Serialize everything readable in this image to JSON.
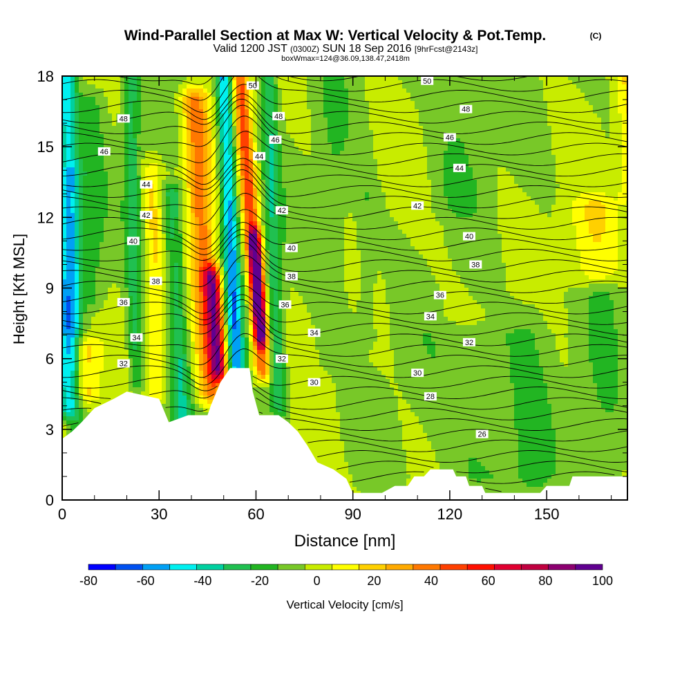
{
  "header": {
    "title": "Wind-Parallel Section at Max W: Vertical Velocity & Pot.Temp.",
    "copyright": "(C)",
    "valid_prefix": "Valid 1200 JST",
    "utc": "(0300Z)",
    "valid_date": "SUN 18 Sep 2016",
    "forecast": "[9hrFcst@2143z]",
    "box_info": "boxWmax=124@36.09,138.47,2418m"
  },
  "colors": {
    "background": "#ffffff",
    "frame": "#000000",
    "terrain": "#ffffff",
    "contour": "#000000"
  },
  "chart_data": {
    "type": "heatmap",
    "title": "Wind-Parallel Section at Max W: Vertical Velocity & Pot.Temp.",
    "xlabel": "Distance [nm]",
    "ylabel": "Height [Kft MSL]",
    "xlim": [
      0,
      175
    ],
    "ylim": [
      0,
      18
    ],
    "x_ticks": [
      0,
      30,
      60,
      90,
      120,
      150
    ],
    "y_ticks": [
      0,
      3,
      6,
      9,
      12,
      15,
      18
    ],
    "colorbar": {
      "label": "Vertical Velocity [cm/s]",
      "levels": [
        -80,
        -70,
        -60,
        -50,
        -40,
        -30,
        -20,
        -10,
        0,
        10,
        20,
        30,
        40,
        50,
        60,
        70,
        80,
        90,
        100
      ],
      "tick_labels": [
        "-80",
        "-60",
        "-40",
        "-20",
        "0",
        "20",
        "40",
        "60",
        "80",
        "100"
      ],
      "tick_values": [
        -80,
        -60,
        -40,
        -20,
        0,
        20,
        40,
        60,
        80,
        100
      ],
      "colors": [
        "#0000ff",
        "#0050f0",
        "#00a0f5",
        "#00f0f0",
        "#00d0a0",
        "#20c050",
        "#22b522",
        "#78c828",
        "#c8ec00",
        "#ffff00",
        "#ffd000",
        "#ffaa00",
        "#ff7800",
        "#ff4000",
        "#ff1000",
        "#e00030",
        "#c00040",
        "#8c0070",
        "#600090"
      ]
    },
    "terrain_profile": [
      [
        0,
        2.6
      ],
      [
        3,
        2.9
      ],
      [
        6,
        3.3
      ],
      [
        10,
        3.9
      ],
      [
        16,
        4.3
      ],
      [
        20,
        4.6
      ],
      [
        30,
        4.3
      ],
      [
        33,
        3.3
      ],
      [
        39,
        3.6
      ],
      [
        45,
        3.6
      ],
      [
        46,
        4.0
      ],
      [
        49,
        5.0
      ],
      [
        52,
        5.6
      ],
      [
        58,
        5.6
      ],
      [
        59,
        4.6
      ],
      [
        61,
        3.6
      ],
      [
        67,
        3.6
      ],
      [
        70,
        3.3
      ],
      [
        73,
        2.9
      ],
      [
        76,
        2.3
      ],
      [
        79,
        1.6
      ],
      [
        84,
        1.3
      ],
      [
        88,
        0.9
      ],
      [
        90,
        0.3
      ],
      [
        99,
        0.3
      ],
      [
        103,
        0.6
      ],
      [
        107,
        0.6
      ],
      [
        109,
        1.0
      ],
      [
        112,
        1.0
      ],
      [
        114,
        1.3
      ],
      [
        121,
        1.3
      ],
      [
        122,
        1.0
      ],
      [
        125,
        1.0
      ],
      [
        126,
        0.6
      ],
      [
        130,
        0.6
      ],
      [
        131,
        0.3
      ],
      [
        148,
        0.3
      ],
      [
        150,
        0.6
      ],
      [
        157,
        0.6
      ],
      [
        158,
        1.0
      ],
      [
        175,
        1.0
      ]
    ],
    "w_features": [
      {
        "x": 1.5,
        "y_base": 4,
        "y_top": 18,
        "lean": 0,
        "half_width": 3,
        "w": -45
      },
      {
        "x": 4,
        "y_base": 3,
        "y_top": 14,
        "lean": 0,
        "half_width": 2.5,
        "w": -20
      },
      {
        "x": 9,
        "y_base": 8.5,
        "y_top": 17,
        "lean": 0,
        "half_width": 4,
        "w": -14
      },
      {
        "x": 7,
        "y_base": 4.5,
        "y_top": 6.5,
        "lean": 0,
        "half_width": 5,
        "w": 25
      },
      {
        "x": 23,
        "y_base": 5,
        "y_top": 18,
        "lean": -2,
        "half_width": 2.5,
        "w": -25
      },
      {
        "x": 29,
        "y_base": 4.5,
        "y_top": 14,
        "lean": -1,
        "half_width": 2.5,
        "w": 18
      },
      {
        "x": 37,
        "y_base": 3.5,
        "y_top": 13,
        "lean": -3,
        "half_width": 3,
        "w": -28
      },
      {
        "x": 46,
        "y_base": 4.5,
        "y_top": 17,
        "lean": -5,
        "half_width": 4,
        "w": 45
      },
      {
        "x": 48.5,
        "y_base": 5.5,
        "y_top": 9.5,
        "lean": -2,
        "half_width": 2.5,
        "w": 75
      },
      {
        "x": 54,
        "y_base": 5.6,
        "y_top": 18,
        "lean": -4,
        "half_width": 2.5,
        "w": -55
      },
      {
        "x": 62,
        "y_base": 5.5,
        "y_top": 18,
        "lean": -7,
        "half_width": 2.5,
        "w": 55
      },
      {
        "x": 61.5,
        "y_base": 7,
        "y_top": 11,
        "lean": -2,
        "half_width": 1.8,
        "w": 85
      },
      {
        "x": 67,
        "y_base": 4,
        "y_top": 18,
        "lean": -3,
        "half_width": 2.5,
        "w": -28
      },
      {
        "x": 84,
        "y_base": 6,
        "y_top": 18,
        "lean": 0,
        "half_width": 5,
        "w": -8
      },
      {
        "x": 94,
        "y_base": 7,
        "y_top": 13,
        "lean": 0,
        "half_width": 3,
        "w": -9
      },
      {
        "x": 123,
        "y_base": 12.5,
        "y_top": 18,
        "lean": 0,
        "half_width": 8,
        "w": -9
      },
      {
        "x": 130,
        "y_base": 1,
        "y_top": 7,
        "lean": 0,
        "half_width": 18,
        "w": -9
      },
      {
        "x": 145,
        "y_base": 0,
        "y_top": 8,
        "lean": 0,
        "half_width": 6,
        "w": -8
      },
      {
        "x": 168,
        "y_base": 1,
        "y_top": 9,
        "lean": 0,
        "half_width": 6,
        "w": -9
      },
      {
        "x": 165,
        "y_base": 9.5,
        "y_top": 12.5,
        "lean": 0,
        "half_width": 8,
        "w": 18
      },
      {
        "x": 175,
        "y_base": 13,
        "y_top": 18,
        "lean": 0,
        "half_width": 3,
        "w": 18
      }
    ],
    "theta_levels": [
      26,
      28,
      30,
      32,
      34,
      36,
      38,
      40,
      42,
      44,
      46,
      48,
      50
    ],
    "theta_height_east": {
      "26": 2.8,
      "28": 4.5,
      "30": 5.2,
      "32": 6.7,
      "34": 7.8,
      "36": 8.7,
      "38": 10.0,
      "40": 11.2,
      "42": 12.6,
      "44": 14.0,
      "46": 15.3,
      "48": 16.6,
      "50": 17.8
    },
    "contour_labels": [
      {
        "text": "50",
        "x": 59,
        "y": 17.6
      },
      {
        "text": "50",
        "x": 113,
        "y": 17.8
      },
      {
        "text": "48",
        "x": 19,
        "y": 16.2
      },
      {
        "text": "48",
        "x": 67,
        "y": 16.3
      },
      {
        "text": "48",
        "x": 125,
        "y": 16.6
      },
      {
        "text": "46",
        "x": 13,
        "y": 14.8
      },
      {
        "text": "46",
        "x": 66,
        "y": 15.3
      },
      {
        "text": "46",
        "x": 120,
        "y": 15.4
      },
      {
        "text": "44",
        "x": 26,
        "y": 13.4
      },
      {
        "text": "44",
        "x": 61,
        "y": 14.6
      },
      {
        "text": "44",
        "x": 123,
        "y": 14.1
      },
      {
        "text": "42",
        "x": 26,
        "y": 12.1
      },
      {
        "text": "42",
        "x": 68,
        "y": 12.3
      },
      {
        "text": "42",
        "x": 110,
        "y": 12.5
      },
      {
        "text": "40",
        "x": 22,
        "y": 11.0
      },
      {
        "text": "40",
        "x": 71,
        "y": 10.7
      },
      {
        "text": "40",
        "x": 126,
        "y": 11.2
      },
      {
        "text": "38",
        "x": 29,
        "y": 9.3
      },
      {
        "text": "38",
        "x": 71,
        "y": 9.5
      },
      {
        "text": "38",
        "x": 128,
        "y": 10.0
      },
      {
        "text": "36",
        "x": 19,
        "y": 8.4
      },
      {
        "text": "36",
        "x": 69,
        "y": 8.3
      },
      {
        "text": "36",
        "x": 117,
        "y": 8.7
      },
      {
        "text": "34",
        "x": 23,
        "y": 6.9
      },
      {
        "text": "34",
        "x": 78,
        "y": 7.1
      },
      {
        "text": "34",
        "x": 114,
        "y": 7.8
      },
      {
        "text": "32",
        "x": 19,
        "y": 5.8
      },
      {
        "text": "32",
        "x": 68,
        "y": 6.0
      },
      {
        "text": "32",
        "x": 126,
        "y": 6.7
      },
      {
        "text": "30",
        "x": 78,
        "y": 5.0
      },
      {
        "text": "30",
        "x": 110,
        "y": 5.4
      },
      {
        "text": "28",
        "x": 114,
        "y": 4.4
      },
      {
        "text": "26",
        "x": 130,
        "y": 2.8
      }
    ]
  }
}
